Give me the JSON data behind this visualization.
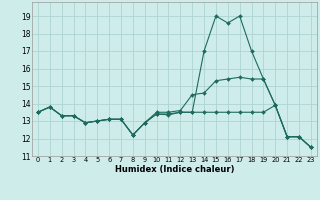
{
  "xlabel": "Humidex (Indice chaleur)",
  "xlim": [
    -0.5,
    23.5
  ],
  "ylim": [
    11,
    19.8
  ],
  "yticks": [
    11,
    12,
    13,
    14,
    15,
    16,
    17,
    18,
    19
  ],
  "xticks": [
    0,
    1,
    2,
    3,
    4,
    5,
    6,
    7,
    8,
    9,
    10,
    11,
    12,
    13,
    14,
    15,
    16,
    17,
    18,
    19,
    20,
    21,
    22,
    23
  ],
  "bg_color": "#ceecea",
  "grid_color": "#aed4d2",
  "line_color": "#1e6b5e",
  "line1_x": [
    0,
    1,
    2,
    3,
    4,
    5,
    6,
    7,
    8,
    9,
    10,
    11,
    12,
    13,
    14,
    15,
    16,
    17,
    18,
    19,
    20,
    21,
    22,
    23
  ],
  "line1_y": [
    13.5,
    13.8,
    13.3,
    13.3,
    12.9,
    13.0,
    13.1,
    13.1,
    12.2,
    12.9,
    13.4,
    13.35,
    13.5,
    13.5,
    17.0,
    19.0,
    18.6,
    19.0,
    17.0,
    15.4,
    13.9,
    12.1,
    12.1,
    11.5
  ],
  "line2_x": [
    0,
    1,
    2,
    3,
    4,
    5,
    6,
    7,
    8,
    9,
    10,
    11,
    12,
    13,
    14,
    15,
    16,
    17,
    18,
    19,
    20,
    21,
    22,
    23
  ],
  "line2_y": [
    13.5,
    13.8,
    13.3,
    13.3,
    12.9,
    13.0,
    13.1,
    13.1,
    12.2,
    12.9,
    13.5,
    13.5,
    13.6,
    14.5,
    14.6,
    15.3,
    15.4,
    15.5,
    15.4,
    15.4,
    13.9,
    12.1,
    12.1,
    11.5
  ],
  "line3_x": [
    0,
    1,
    2,
    3,
    4,
    5,
    6,
    7,
    8,
    9,
    10,
    11,
    12,
    13,
    14,
    15,
    16,
    17,
    18,
    19,
    20,
    21,
    22,
    23
  ],
  "line3_y": [
    13.5,
    13.8,
    13.3,
    13.3,
    12.9,
    13.0,
    13.1,
    13.1,
    12.2,
    12.9,
    13.4,
    13.4,
    13.5,
    13.5,
    13.5,
    13.5,
    13.5,
    13.5,
    13.5,
    13.5,
    13.9,
    12.1,
    12.1,
    11.5
  ]
}
